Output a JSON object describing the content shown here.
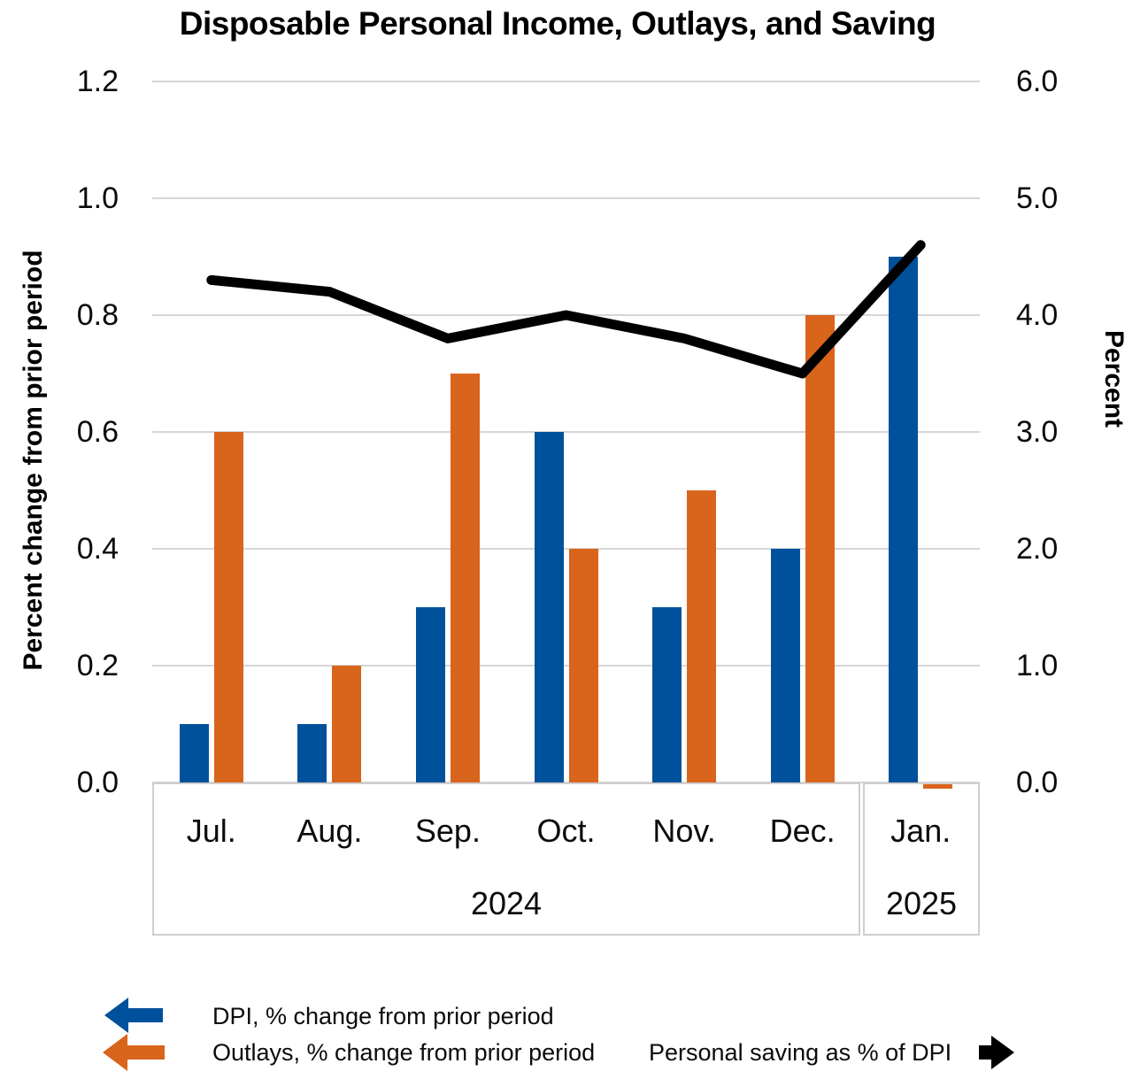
{
  "title": "Disposable Personal Income, Outlays, and Saving",
  "left_axis": {
    "title": "Percent change from prior period",
    "ticks": [
      "1.2",
      "1.0",
      "0.8",
      "0.6",
      "0.4",
      "0.2",
      "0.0"
    ]
  },
  "right_axis": {
    "title": "Percent",
    "ticks": [
      "6.0",
      "5.0",
      "4.0",
      "3.0",
      "2.0",
      "1.0",
      "0.0"
    ]
  },
  "x_axis": {
    "months": [
      "Jul.",
      "Aug.",
      "Sep.",
      "Oct.",
      "Nov.",
      "Dec.",
      "Jan."
    ],
    "year_groups": [
      {
        "label": "2024",
        "span": 6
      },
      {
        "label": "2025",
        "span": 1
      }
    ]
  },
  "legend": [
    {
      "label": "DPI, % change from prior period",
      "marker": "left-arrow",
      "color": "#00519C"
    },
    {
      "label": "Outlays, % change from prior period",
      "marker": "left-arrow",
      "color": "#D9641C"
    },
    {
      "label": "Personal saving as % of DPI",
      "marker": "right-arrow",
      "color": "#000000"
    }
  ],
  "chart_data": {
    "type": "bar",
    "subtype": "grouped bars with overlay line, dual y-axes",
    "categories": [
      "Jul. 2024",
      "Aug. 2024",
      "Sep. 2024",
      "Oct. 2024",
      "Nov. 2024",
      "Dec. 2024",
      "Jan. 2025"
    ],
    "series": [
      {
        "name": "DPI, % change from prior period",
        "type": "bar",
        "axis": "left",
        "color": "#00519C",
        "values": [
          0.1,
          0.1,
          0.3,
          0.6,
          0.3,
          0.4,
          0.9
        ]
      },
      {
        "name": "Outlays, % change from prior period",
        "type": "bar",
        "axis": "left",
        "color": "#D9641C",
        "values": [
          0.6,
          0.2,
          0.7,
          0.4,
          0.5,
          0.8,
          -0.01
        ]
      },
      {
        "name": "Personal saving as % of DPI",
        "type": "line",
        "axis": "right",
        "color": "#000000",
        "values": [
          4.3,
          4.2,
          3.8,
          4.0,
          3.8,
          3.5,
          4.6
        ]
      }
    ],
    "title": "Disposable Personal Income, Outlays, and Saving",
    "xlabel": "",
    "ylabel_left": "Percent change from prior period",
    "ylabel_right": "Percent",
    "left_ylim": [
      0,
      1.2
    ],
    "right_ylim": [
      0,
      6.0
    ],
    "grid": true,
    "legend_position": "bottom"
  },
  "colors": {
    "dpi_blue": "#00519C",
    "outlays_orange": "#D9641C",
    "saving_line": "#000000",
    "gridline": "#D6D6D6",
    "axis_box_border": "#D0CECE"
  }
}
